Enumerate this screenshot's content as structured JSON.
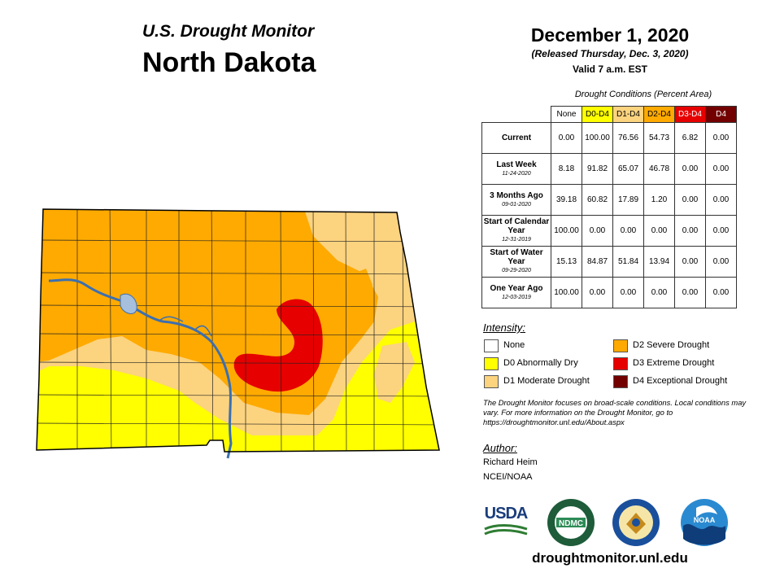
{
  "header": {
    "subtitle": "U.S. Drought Monitor",
    "state": "North Dakota",
    "date": "December 1, 2020",
    "released": "(Released Thursday, Dec. 3, 2020)",
    "valid": "Valid 7 a.m. EST"
  },
  "table": {
    "caption": "Drought Conditions (Percent Area)",
    "columns": [
      {
        "label": "None",
        "color": "#ffffff",
        "text_color": "#000000"
      },
      {
        "label": "D0-D4",
        "color": "#ffff00",
        "text_color": "#000000"
      },
      {
        "label": "D1-D4",
        "color": "#fcd37f",
        "text_color": "#000000"
      },
      {
        "label": "D2-D4",
        "color": "#ffaa00",
        "text_color": "#000000"
      },
      {
        "label": "D3-D4",
        "color": "#e60000",
        "text_color": "#ffffff"
      },
      {
        "label": "D4",
        "color": "#730000",
        "text_color": "#ffffff"
      }
    ],
    "rows": [
      {
        "label": "Current",
        "date": "",
        "values": [
          "0.00",
          "100.00",
          "76.56",
          "54.73",
          "6.82",
          "0.00"
        ]
      },
      {
        "label": "Last Week",
        "date": "11-24-2020",
        "values": [
          "8.18",
          "91.82",
          "65.07",
          "46.78",
          "0.00",
          "0.00"
        ]
      },
      {
        "label": "3 Months Ago",
        "date": "09-01-2020",
        "values": [
          "39.18",
          "60.82",
          "17.89",
          "1.20",
          "0.00",
          "0.00"
        ]
      },
      {
        "label": "Start of Calendar Year",
        "date": "12-31-2019",
        "values": [
          "100.00",
          "0.00",
          "0.00",
          "0.00",
          "0.00",
          "0.00"
        ]
      },
      {
        "label": "Start of Water Year",
        "date": "09-29-2020",
        "values": [
          "15.13",
          "84.87",
          "51.84",
          "13.94",
          "0.00",
          "0.00"
        ]
      },
      {
        "label": "One Year Ago",
        "date": "12-03-2019",
        "values": [
          "100.00",
          "0.00",
          "0.00",
          "0.00",
          "0.00",
          "0.00"
        ]
      }
    ]
  },
  "legend": {
    "title": "Intensity:",
    "items": [
      {
        "label": "None",
        "color": "#ffffff"
      },
      {
        "label": "D0 Abnormally Dry",
        "color": "#ffff00"
      },
      {
        "label": "D1 Moderate Drought",
        "color": "#fcd37f"
      },
      {
        "label": "D2 Severe Drought",
        "color": "#ffaa00"
      },
      {
        "label": "D3 Extreme Drought",
        "color": "#e60000"
      },
      {
        "label": "D4 Exceptional Drought",
        "color": "#730000"
      }
    ]
  },
  "note": "The Drought Monitor focuses on broad-scale conditions. Local conditions may vary. For more information on the Drought Monitor, go to https://droughtmonitor.unl.edu/About.aspx",
  "author": {
    "title": "Author:",
    "name": "Richard Heim",
    "org": "NCEI/NOAA"
  },
  "logos": [
    {
      "name": "usda-logo",
      "text": "USDA"
    },
    {
      "name": "ndmc-logo",
      "text": "NDMC"
    },
    {
      "name": "doc-seal",
      "text": ""
    },
    {
      "name": "noaa-logo",
      "text": "NOAA"
    }
  ],
  "footer": {
    "website": "droughtmonitor.unl.edu"
  },
  "colors": {
    "water": "#a5bfdd",
    "river": "#3c6fb0",
    "county_line": "#222222"
  }
}
